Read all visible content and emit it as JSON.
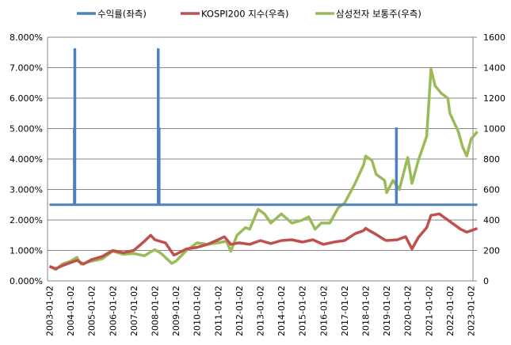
{
  "chart_data": {
    "type": "line",
    "title": "",
    "legend": {
      "position": "top",
      "entries": [
        {
          "name": "수익률(좌측)",
          "color": "#4F81BD",
          "axis": "left"
        },
        {
          "name": "KOSPI200 지수(우측)",
          "color": "#C0504D",
          "axis": "right"
        },
        {
          "name": "삼성전자 보통주(우측)",
          "color": "#9BBB59",
          "axis": "right"
        }
      ]
    },
    "xlabel": "",
    "ylabel_left": "",
    "ylabel_right": "",
    "x_tick_labels": [
      "2003-01-02",
      "2004-01-02",
      "2005-01-02",
      "2006-01-02",
      "2007-01-02",
      "2008-01-02",
      "2009-01-02",
      "2010-01-02",
      "2011-01-02",
      "2012-01-02",
      "2013-01-02",
      "2014-01-02",
      "2015-01-02",
      "2016-01-02",
      "2017-01-02",
      "2018-01-02",
      "2019-01-02",
      "2020-01-02",
      "2021-01-02",
      "2022-01-02",
      "2023-01-02"
    ],
    "y_left": {
      "min": 0,
      "max": 0.08,
      "ticks": [
        "0.000%",
        "1.000%",
        "2.000%",
        "3.000%",
        "4.000%",
        "5.000%",
        "6.000%",
        "7.000%",
        "8.000%"
      ]
    },
    "y_right": {
      "min": 0,
      "max": 1600,
      "ticks": [
        "0",
        "200",
        "400",
        "600",
        "800",
        "1000",
        "1200",
        "1400",
        "1600"
      ]
    },
    "grid": true,
    "series": [
      {
        "name": "수익률(좌측)",
        "axis": "left",
        "x": [
          2003.0,
          2004.17,
          2004.17,
          2004.19,
          2004.19,
          2004.21,
          2004.21,
          2008.15,
          2008.15,
          2008.17,
          2008.17,
          2008.21,
          2008.21,
          2019.45,
          2019.45,
          2019.47,
          2019.47,
          2023.3
        ],
        "values": [
          2.5,
          2.5,
          5.0,
          5.0,
          7.6,
          7.6,
          2.5,
          2.5,
          7.6,
          7.6,
          5.0,
          5.0,
          2.5,
          2.5,
          5.0,
          5.0,
          2.5,
          2.5
        ],
        "unit": "%"
      },
      {
        "name": "KOSPI200 지수(우측)",
        "axis": "right",
        "x": [
          2003.0,
          2003.3,
          2003.6,
          2004.0,
          2004.3,
          2004.6,
          2005.0,
          2005.5,
          2006.0,
          2006.5,
          2007.0,
          2007.5,
          2007.8,
          2008.0,
          2008.5,
          2008.9,
          2009.0,
          2009.5,
          2010.0,
          2010.5,
          2011.0,
          2011.3,
          2011.6,
          2012.0,
          2012.5,
          2013.0,
          2013.5,
          2014.0,
          2014.5,
          2015.0,
          2015.5,
          2015.9,
          2016.0,
          2016.5,
          2017.0,
          2017.5,
          2017.9,
          2018.0,
          2018.5,
          2018.9,
          2019.0,
          2019.5,
          2019.9,
          2020.2,
          2020.5,
          2020.9,
          2021.1,
          2021.5,
          2021.9,
          2022.0,
          2022.5,
          2022.8,
          2023.0,
          2023.3
        ],
        "values": [
          95,
          80,
          100,
          120,
          135,
          110,
          140,
          160,
          200,
          185,
          200,
          260,
          300,
          270,
          250,
          170,
          175,
          210,
          220,
          240,
          270,
          290,
          240,
          250,
          240,
          265,
          245,
          265,
          270,
          255,
          270,
          245,
          240,
          255,
          265,
          310,
          330,
          345,
          305,
          270,
          265,
          270,
          290,
          210,
          285,
          350,
          430,
          440,
          400,
          390,
          340,
          320,
          330,
          345
        ]
      },
      {
        "name": "삼성전자 보통주(우측)",
        "axis": "right",
        "x": [
          2003.0,
          2003.3,
          2003.6,
          2004.0,
          2004.3,
          2004.5,
          2005.0,
          2005.5,
          2006.0,
          2006.5,
          2007.0,
          2007.5,
          2007.8,
          2008.0,
          2008.3,
          2008.8,
          2009.0,
          2009.5,
          2010.0,
          2010.5,
          2011.0,
          2011.4,
          2011.6,
          2011.9,
          2012.3,
          2012.5,
          2012.9,
          2013.2,
          2013.5,
          2014.0,
          2014.5,
          2015.0,
          2015.3,
          2015.6,
          2015.9,
          2016.3,
          2016.7,
          2017.0,
          2017.5,
          2017.9,
          2018.0,
          2018.3,
          2018.5,
          2018.9,
          2019.0,
          2019.3,
          2019.6,
          2019.9,
          2020.0,
          2020.2,
          2020.5,
          2020.9,
          2021.1,
          2021.3,
          2021.6,
          2021.9,
          2022.0,
          2022.4,
          2022.6,
          2022.8,
          2023.0,
          2023.3
        ],
        "values": [
          95,
          75,
          110,
          130,
          155,
          110,
          130,
          145,
          195,
          175,
          180,
          165,
          190,
          205,
          180,
          115,
          130,
          200,
          250,
          240,
          250,
          260,
          195,
          300,
          350,
          340,
          470,
          440,
          380,
          440,
          380,
          400,
          420,
          340,
          380,
          380,
          480,
          510,
          640,
          760,
          820,
          790,
          700,
          660,
          580,
          660,
          600,
          760,
          810,
          640,
          790,
          950,
          1390,
          1280,
          1230,
          1200,
          1100,
          980,
          880,
          820,
          930,
          980
        ]
      }
    ]
  }
}
